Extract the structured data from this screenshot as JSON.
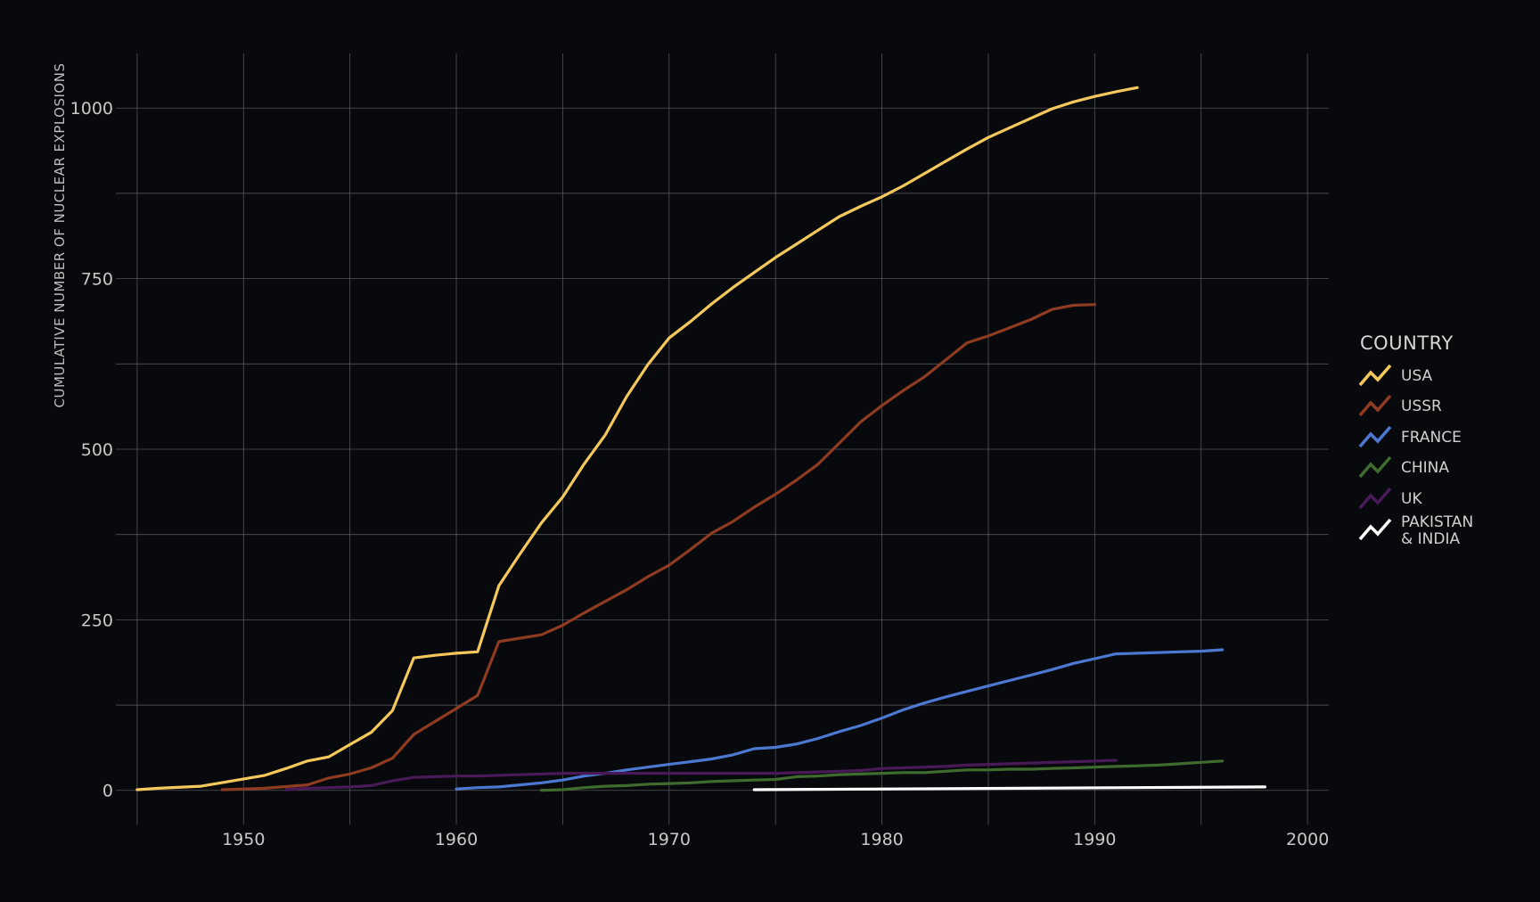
{
  "chart_data": {
    "type": "line",
    "ylabel": "CUMULATIVE NUMBER OF NUCLEAR EXPLOSIONS",
    "xlabel": "",
    "xlim": [
      1944,
      2001
    ],
    "ylim": [
      -50,
      1080
    ],
    "x_ticks": [
      1950,
      1960,
      1970,
      1980,
      1990,
      2000
    ],
    "x_tick_labels": [
      "1950",
      "1960",
      "1970",
      "1980",
      "1990",
      "2000"
    ],
    "x_minor_grid": [
      1945,
      1955,
      1965,
      1975,
      1985,
      1995
    ],
    "y_ticks": [
      0,
      250,
      500,
      750,
      1000
    ],
    "y_tick_labels": [
      "0",
      "250",
      "500",
      "750",
      "1000"
    ],
    "y_minor_grid": [
      125,
      375,
      625,
      875
    ],
    "grid": true,
    "legend": {
      "title": "COUNTRY",
      "position": "right"
    },
    "series": [
      {
        "name": "USA",
        "color": "#f5c85b",
        "x": [
          1945,
          1946,
          1948,
          1951,
          1952,
          1953,
          1954,
          1955,
          1956,
          1957,
          1958,
          1959,
          1960,
          1961,
          1962,
          1963,
          1964,
          1965,
          1966,
          1967,
          1968,
          1969,
          1970,
          1971,
          1972,
          1973,
          1974,
          1975,
          1976,
          1977,
          1978,
          1979,
          1980,
          1981,
          1982,
          1983,
          1984,
          1985,
          1986,
          1987,
          1988,
          1989,
          1990,
          1991,
          1992
        ],
        "y": [
          1,
          3,
          6,
          22,
          32,
          43,
          49,
          67,
          85,
          117,
          194,
          198,
          201,
          203,
          300,
          347,
          392,
          430,
          478,
          521,
          577,
          624,
          663,
          687,
          713,
          737,
          759,
          781,
          801,
          821,
          841,
          856,
          870,
          886,
          904,
          922,
          940,
          957,
          971,
          985,
          999,
          1009,
          1017,
          1024,
          1030
        ]
      },
      {
        "name": "USSR",
        "color": "#8e3b22",
        "x": [
          1949,
          1951,
          1953,
          1954,
          1955,
          1956,
          1957,
          1958,
          1959,
          1960,
          1961,
          1962,
          1963,
          1964,
          1965,
          1966,
          1967,
          1968,
          1969,
          1970,
          1971,
          1972,
          1973,
          1974,
          1975,
          1976,
          1977,
          1978,
          1979,
          1980,
          1981,
          1982,
          1983,
          1984,
          1985,
          1986,
          1987,
          1988,
          1989,
          1990
        ],
        "y": [
          1,
          3,
          8,
          18,
          24,
          33,
          47,
          82,
          101,
          120,
          139,
          218,
          223,
          228,
          242,
          260,
          277,
          294,
          313,
          330,
          353,
          377,
          394,
          415,
          434,
          455,
          478,
          509,
          540,
          564,
          586,
          606,
          631,
          656,
          666,
          678,
          690,
          705,
          711,
          712
        ]
      },
      {
        "name": "FRANCE",
        "color": "#4c78d2",
        "x": [
          1960,
          1961,
          1962,
          1963,
          1964,
          1965,
          1966,
          1967,
          1968,
          1969,
          1970,
          1971,
          1972,
          1973,
          1974,
          1975,
          1976,
          1977,
          1978,
          1979,
          1980,
          1981,
          1982,
          1983,
          1984,
          1985,
          1986,
          1987,
          1988,
          1989,
          1990,
          1991,
          1992,
          1993,
          1994,
          1995,
          1996
        ],
        "y": [
          2,
          4,
          5,
          8,
          11,
          15,
          21,
          25,
          30,
          34,
          38,
          42,
          46,
          52,
          61,
          63,
          68,
          76,
          86,
          95,
          106,
          118,
          128,
          137,
          145,
          153,
          161,
          169,
          177,
          186,
          193,
          200,
          201,
          202,
          203,
          204,
          206
        ]
      },
      {
        "name": "CHINA",
        "color": "#3f6b2e",
        "x": [
          1964,
          1965,
          1966,
          1967,
          1968,
          1969,
          1970,
          1971,
          1972,
          1973,
          1974,
          1975,
          1976,
          1977,
          1978,
          1979,
          1980,
          1981,
          1982,
          1983,
          1984,
          1985,
          1986,
          1987,
          1988,
          1989,
          1990,
          1991,
          1992,
          1993,
          1994,
          1995,
          1996
        ],
        "y": [
          0,
          1,
          4,
          6,
          7,
          9,
          10,
          11,
          13,
          14,
          15,
          16,
          20,
          21,
          23,
          24,
          25,
          26,
          26,
          28,
          30,
          30,
          31,
          31,
          32,
          33,
          34,
          35,
          36,
          37,
          39,
          41,
          43
        ]
      },
      {
        "name": "UK",
        "color": "#4a1a58",
        "x": [
          1952,
          1953,
          1954,
          1955,
          1956,
          1957,
          1958,
          1959,
          1960,
          1961,
          1962,
          1963,
          1964,
          1965,
          1966,
          1967,
          1968,
          1969,
          1970,
          1971,
          1972,
          1973,
          1974,
          1975,
          1976,
          1977,
          1978,
          1979,
          1980,
          1981,
          1982,
          1983,
          1984,
          1985,
          1986,
          1987,
          1988,
          1989,
          1990,
          1991
        ],
        "y": [
          1,
          3,
          4,
          5,
          7,
          14,
          19,
          20,
          21,
          21,
          22,
          23,
          24,
          25,
          25,
          25,
          25,
          25,
          25,
          25,
          25,
          25,
          25,
          25,
          26,
          27,
          28,
          29,
          32,
          33,
          34,
          35,
          37,
          38,
          39,
          40,
          41,
          42,
          43,
          44
        ]
      },
      {
        "name": "PAKISTAN\n& INDIA",
        "color": "#ffffff",
        "x": [
          1974,
          1998
        ],
        "y": [
          1,
          5
        ]
      }
    ]
  }
}
